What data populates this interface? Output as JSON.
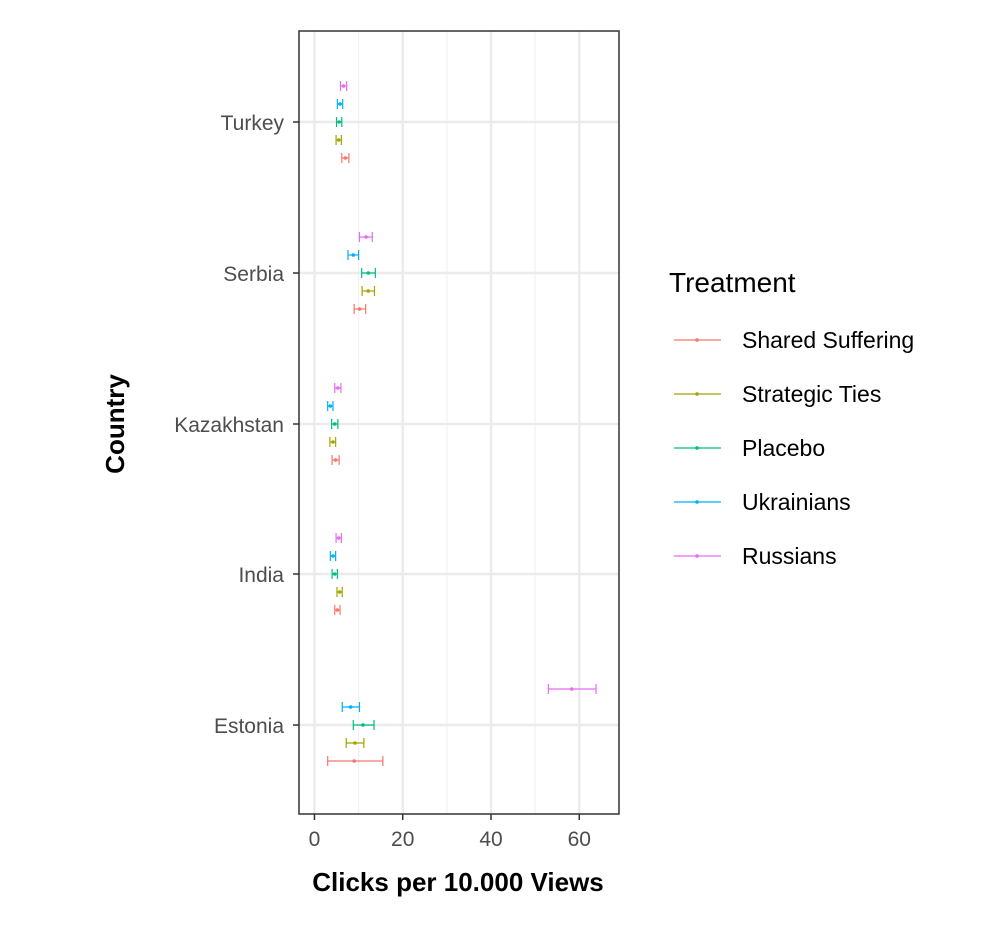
{
  "chart_data": {
    "type": "scatter",
    "orientation": "horizontal",
    "error_bars": true,
    "xlabel": "Clicks per 10.000 Views",
    "ylabel": "Country",
    "xlim": [
      -3.5,
      69
    ],
    "xticks": [
      0,
      20,
      40,
      60
    ],
    "categories": [
      "Turkey",
      "Serbia",
      "Kazakhstan",
      "India",
      "Estonia"
    ],
    "grid": true,
    "legend": {
      "title": "Treatment",
      "position": "right"
    },
    "series": [
      {
        "name": "Shared Suffering",
        "color": "#F8766D",
        "values": [
          {
            "country": "Turkey",
            "x": 7.0,
            "low": 6.2,
            "high": 7.8
          },
          {
            "country": "Serbia",
            "x": 10.2,
            "low": 9.0,
            "high": 11.6
          },
          {
            "country": "Kazakhstan",
            "x": 4.8,
            "low": 4.0,
            "high": 5.6
          },
          {
            "country": "India",
            "x": 5.2,
            "low": 4.6,
            "high": 5.8
          },
          {
            "country": "Estonia",
            "x": 9.0,
            "low": 3.0,
            "high": 15.5
          }
        ]
      },
      {
        "name": "Strategic Ties",
        "color": "#A3A500",
        "values": [
          {
            "country": "Turkey",
            "x": 5.5,
            "low": 4.9,
            "high": 6.1
          },
          {
            "country": "Serbia",
            "x": 12.2,
            "low": 10.8,
            "high": 13.6
          },
          {
            "country": "Kazakhstan",
            "x": 4.2,
            "low": 3.5,
            "high": 4.8
          },
          {
            "country": "India",
            "x": 5.7,
            "low": 5.1,
            "high": 6.3
          },
          {
            "country": "Estonia",
            "x": 9.2,
            "low": 7.2,
            "high": 11.2
          }
        ]
      },
      {
        "name": "Placebo",
        "color": "#00BF7D",
        "values": [
          {
            "country": "Turkey",
            "x": 5.6,
            "low": 5.0,
            "high": 6.2
          },
          {
            "country": "Serbia",
            "x": 12.2,
            "low": 10.7,
            "high": 13.8
          },
          {
            "country": "Kazakhstan",
            "x": 4.6,
            "low": 3.9,
            "high": 5.3
          },
          {
            "country": "India",
            "x": 4.6,
            "low": 4.0,
            "high": 5.2
          },
          {
            "country": "Estonia",
            "x": 11.0,
            "low": 8.8,
            "high": 13.5
          }
        ]
      },
      {
        "name": "Ukrainians",
        "color": "#00B0F6",
        "values": [
          {
            "country": "Turkey",
            "x": 5.8,
            "low": 5.2,
            "high": 6.4
          },
          {
            "country": "Serbia",
            "x": 8.8,
            "low": 7.6,
            "high": 10.0
          },
          {
            "country": "Kazakhstan",
            "x": 3.6,
            "low": 3.0,
            "high": 4.2
          },
          {
            "country": "India",
            "x": 4.2,
            "low": 3.6,
            "high": 4.8
          },
          {
            "country": "Estonia",
            "x": 8.2,
            "low": 6.3,
            "high": 10.2
          }
        ]
      },
      {
        "name": "Russians",
        "color": "#E76BF3",
        "values": [
          {
            "country": "Turkey",
            "x": 6.6,
            "low": 5.9,
            "high": 7.3
          },
          {
            "country": "Serbia",
            "x": 11.7,
            "low": 10.2,
            "high": 13.1
          },
          {
            "country": "Kazakhstan",
            "x": 5.3,
            "low": 4.6,
            "high": 6.0
          },
          {
            "country": "India",
            "x": 5.5,
            "low": 4.9,
            "high": 6.1
          },
          {
            "country": "Estonia",
            "x": 58.3,
            "low": 53.0,
            "high": 63.8
          }
        ]
      }
    ]
  }
}
